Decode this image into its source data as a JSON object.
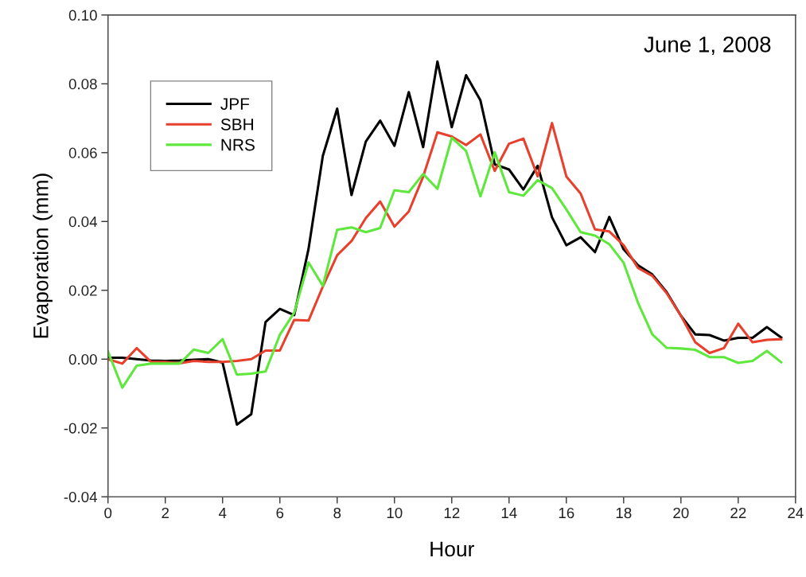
{
  "chart_data": {
    "type": "line",
    "xlabel": "Hour",
    "ylabel": "Evaporation (mm)",
    "annotations": [
      "June 1, 2008"
    ],
    "x": [
      0,
      0.5,
      1,
      1.5,
      2,
      2.5,
      3,
      3.5,
      4,
      4.5,
      5,
      5.5,
      6,
      6.5,
      7,
      7.5,
      8,
      8.5,
      9,
      9.5,
      10,
      10.5,
      11,
      11.5,
      12,
      12.5,
      13,
      13.5,
      14,
      14.5,
      15,
      15.5,
      16,
      16.5,
      17,
      17.5,
      18,
      18.5,
      19,
      19.5,
      20,
      20.5,
      21,
      21.5,
      22,
      22.5,
      23,
      23.5
    ],
    "series": [
      {
        "name": "JPF",
        "color": "#000000",
        "values": [
          0.0004,
          0.0004,
          0.0,
          -0.0004,
          -0.0005,
          -0.0004,
          -0.0002,
          0.0,
          -0.001,
          -0.019,
          -0.016,
          0.0108,
          0.0146,
          0.0128,
          0.032,
          0.0591,
          0.0728,
          0.0477,
          0.0632,
          0.0693,
          0.062,
          0.0776,
          0.0616,
          0.0865,
          0.0674,
          0.0825,
          0.0752,
          0.0566,
          0.0551,
          0.0493,
          0.0562,
          0.0412,
          0.0331,
          0.0354,
          0.0311,
          0.0413,
          0.0319,
          0.0273,
          0.0246,
          0.0195,
          0.0126,
          0.0072,
          0.007,
          0.0054,
          0.0062,
          0.0062,
          0.0093,
          0.0063
        ]
      },
      {
        "name": "SBH",
        "color": "#e8402c",
        "values": [
          0.0,
          -0.0013,
          0.0032,
          -0.0008,
          -0.0008,
          -0.0012,
          -0.0005,
          -0.0008,
          -0.0008,
          -0.0005,
          0.0,
          0.0025,
          0.0025,
          0.0114,
          0.0112,
          0.0211,
          0.0302,
          0.0343,
          0.041,
          0.0458,
          0.0385,
          0.0429,
          0.053,
          0.0659,
          0.0647,
          0.0622,
          0.0653,
          0.0547,
          0.0626,
          0.0641,
          0.0531,
          0.0686,
          0.0531,
          0.0481,
          0.0377,
          0.0371,
          0.0331,
          0.0265,
          0.0242,
          0.0192,
          0.0126,
          0.0049,
          0.0018,
          0.0032,
          0.0103,
          0.0049,
          0.0056,
          0.0058
        ]
      },
      {
        "name": "NRS",
        "color": "#5ee83c",
        "values": [
          0.0022,
          -0.0083,
          -0.0019,
          -0.0013,
          -0.0013,
          -0.0013,
          0.0028,
          0.0018,
          0.0058,
          -0.0045,
          -0.0042,
          -0.0036,
          0.0071,
          0.0135,
          0.0281,
          0.0213,
          0.0376,
          0.0383,
          0.0369,
          0.0381,
          0.0491,
          0.0485,
          0.0538,
          0.0495,
          0.0643,
          0.0605,
          0.0473,
          0.0601,
          0.0485,
          0.0475,
          0.052,
          0.0497,
          0.0435,
          0.0369,
          0.0359,
          0.0334,
          0.028,
          0.0164,
          0.0072,
          0.0033,
          0.0031,
          0.0027,
          0.0006,
          0.0006,
          -0.0011,
          -0.0005,
          0.0024,
          -0.0009
        ]
      }
    ],
    "xlim": [
      0,
      24
    ],
    "xticks": [
      0,
      2,
      4,
      6,
      8,
      10,
      12,
      14,
      16,
      18,
      20,
      22,
      24
    ],
    "ylim": [
      -0.04,
      0.1
    ],
    "yticks": [
      {
        "value": -0.04,
        "label": "-0.04"
      },
      {
        "value": -0.02,
        "label": "-0.02"
      },
      {
        "value": 0.0,
        "label": "0.00"
      },
      {
        "value": 0.02,
        "label": "0.02"
      },
      {
        "value": 0.04,
        "label": "0.04"
      },
      {
        "value": 0.06,
        "label": "0.06"
      },
      {
        "value": 0.08,
        "label": "0.08"
      },
      {
        "value": 0.1,
        "label": "0.10"
      }
    ],
    "grid": false,
    "legend": "top left",
    "marker": "none",
    "line_style": "solid"
  }
}
